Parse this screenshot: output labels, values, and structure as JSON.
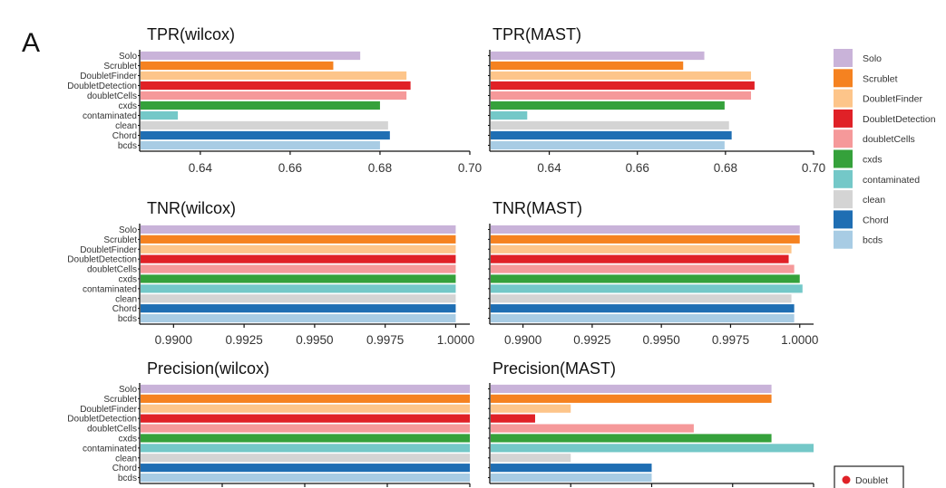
{
  "figure": {
    "panel_label": "A"
  },
  "categories": [
    "Solo",
    "Scrublet",
    "DoubletFinder",
    "DoubletDetection",
    "doubletCells",
    "cxds",
    "contaminated",
    "clean",
    "Chord",
    "bcds"
  ],
  "colors": {
    "Solo": "#c9b3d9",
    "Scrublet": "#f58220",
    "DoubletFinder": "#fdc58a",
    "DoubletDetection": "#e02127",
    "doubletCells": "#f5999a",
    "cxds": "#35a13b",
    "contaminated": "#74c8c8",
    "clean": "#d4d4d4",
    "Chord": "#1f6eb3",
    "bcds": "#a8cce4"
  },
  "legend": {
    "items": [
      "Solo",
      "Scrublet",
      "DoubletFinder",
      "DoubletDetection",
      "doubletCells",
      "cxds",
      "contaminated",
      "clean",
      "Chord",
      "bcds"
    ],
    "placement": "right",
    "extra_label": "Doublet",
    "extra_color": "#e02127"
  },
  "chart_data": [
    {
      "type": "bar",
      "orientation": "horizontal",
      "title": "TPR(wilcox)",
      "xlim": [
        0.6265,
        0.7
      ],
      "ticks": [
        0.64,
        0.66,
        0.68,
        0.7
      ],
      "tick_labels": [
        "0.64",
        "0.66",
        "0.68",
        "0.70"
      ],
      "values": [
        0.6756,
        0.6696,
        0.6859,
        0.6868,
        0.6859,
        0.68,
        0.635,
        0.6818,
        0.6822,
        0.68
      ]
    },
    {
      "type": "bar",
      "orientation": "horizontal",
      "title": "TPR(MAST)",
      "xlim": [
        0.6265,
        0.7
      ],
      "ticks": [
        0.64,
        0.66,
        0.68,
        0.7
      ],
      "tick_labels": [
        "0.64",
        "0.66",
        "0.68",
        "0.70"
      ],
      "values": [
        0.6752,
        0.6704,
        0.6858,
        0.6866,
        0.6858,
        0.6798,
        0.635,
        0.6808,
        0.6814,
        0.6798
      ]
    },
    {
      "type": "bar",
      "orientation": "horizontal",
      "title": "TNR(wilcox)",
      "xlim": [
        0.9888,
        1.0005
      ],
      "ticks": [
        0.99,
        0.9925,
        0.995,
        0.9975,
        1.0
      ],
      "tick_labels": [
        "0.9900",
        "0.9925",
        "0.9950",
        "0.9975",
        "1.0000"
      ],
      "values": [
        1.0,
        1.0,
        1.0,
        1.0,
        1.0,
        1.0,
        1.0,
        1.0,
        1.0,
        1.0
      ]
    },
    {
      "type": "bar",
      "orientation": "horizontal",
      "title": "TNR(MAST)",
      "xlim": [
        0.9888,
        1.0005
      ],
      "ticks": [
        0.99,
        0.9925,
        0.995,
        0.9975,
        1.0
      ],
      "tick_labels": [
        "0.9900",
        "0.9925",
        "0.9950",
        "0.9975",
        "1.0000"
      ],
      "values": [
        1.0,
        1.0,
        0.9997,
        0.9996,
        0.9998,
        1.0,
        1.0001,
        0.9997,
        0.9998,
        0.9998
      ]
    },
    {
      "type": "bar",
      "orientation": "horizontal",
      "title": "Precision(wilcox)",
      "xlim": [
        0,
        1
      ],
      "ticks": [
        0.25,
        0.5,
        0.75,
        1.0
      ],
      "tick_labels": [
        "",
        "",
        "",
        ""
      ],
      "values": [
        1.0,
        1.0,
        1.0,
        1.0,
        1.0,
        1.0,
        1.0,
        1.0,
        1.0,
        1.0
      ]
    },
    {
      "type": "bar",
      "orientation": "horizontal",
      "title": "Precision(MAST)",
      "xlim": [
        0,
        1
      ],
      "ticks": [
        0.25,
        0.5,
        0.75,
        1.0
      ],
      "tick_labels": [
        "",
        "",
        "",
        ""
      ],
      "values": [
        0.87,
        0.87,
        0.25,
        0.14,
        0.63,
        0.87,
        1.0,
        0.25,
        0.5,
        0.5
      ]
    }
  ]
}
